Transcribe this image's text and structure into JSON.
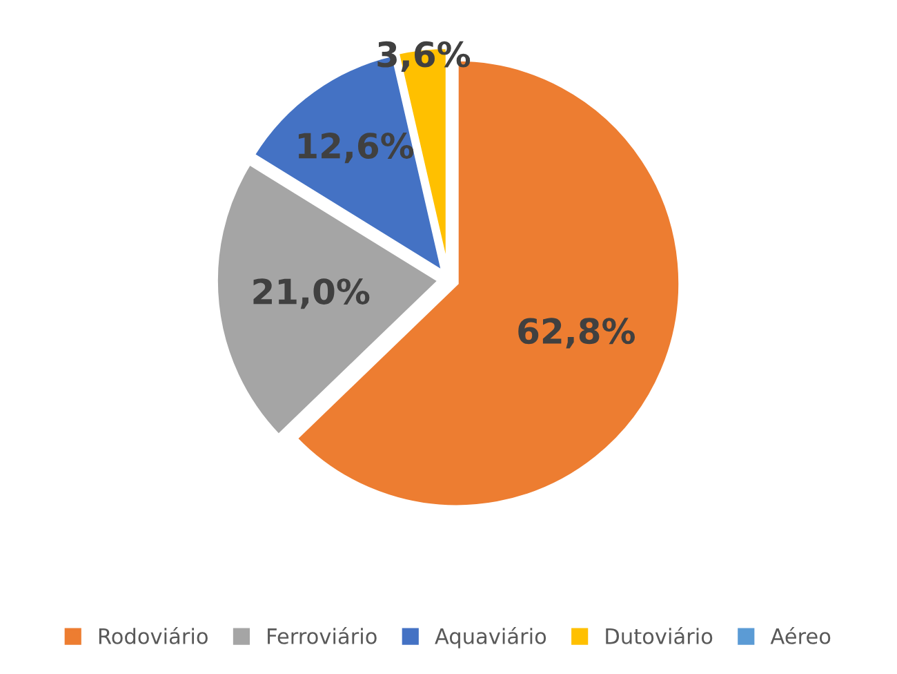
{
  "chart_data": {
    "type": "pie",
    "categories": [
      "Rodoviário",
      "Ferroviário",
      "Aquaviário",
      "Dutoviário",
      "Aéreo"
    ],
    "values": [
      62.8,
      21.0,
      12.6,
      3.6,
      0
    ],
    "value_labels": [
      "62,8%",
      "21,0%",
      "12,6%",
      "3,6%",
      null
    ],
    "colors": [
      "#ed7d31",
      "#a5a5a5",
      "#4472c4",
      "#ffc000",
      "#5b9bd5"
    ],
    "legend": "bottom"
  }
}
